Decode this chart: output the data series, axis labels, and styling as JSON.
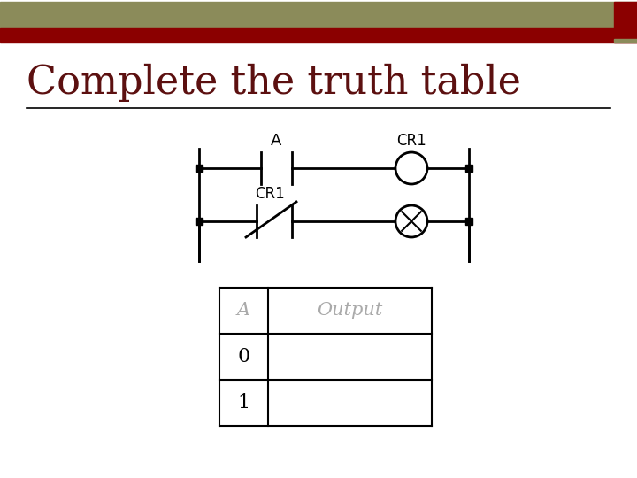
{
  "title": "Complete the truth table",
  "bg_top_color": "#8B8B5A",
  "bg_bar_color": "#8B0000",
  "title_color": "#5C1010",
  "title_fontsize": 32,
  "table_headers": [
    "A",
    "Output"
  ],
  "table_rows": [
    "0",
    "1"
  ],
  "line_color": "#000000",
  "line_width": 1.5,
  "header_text_color": "#AAAAAA",
  "header_fontsize": 15,
  "data_fontsize": 16
}
